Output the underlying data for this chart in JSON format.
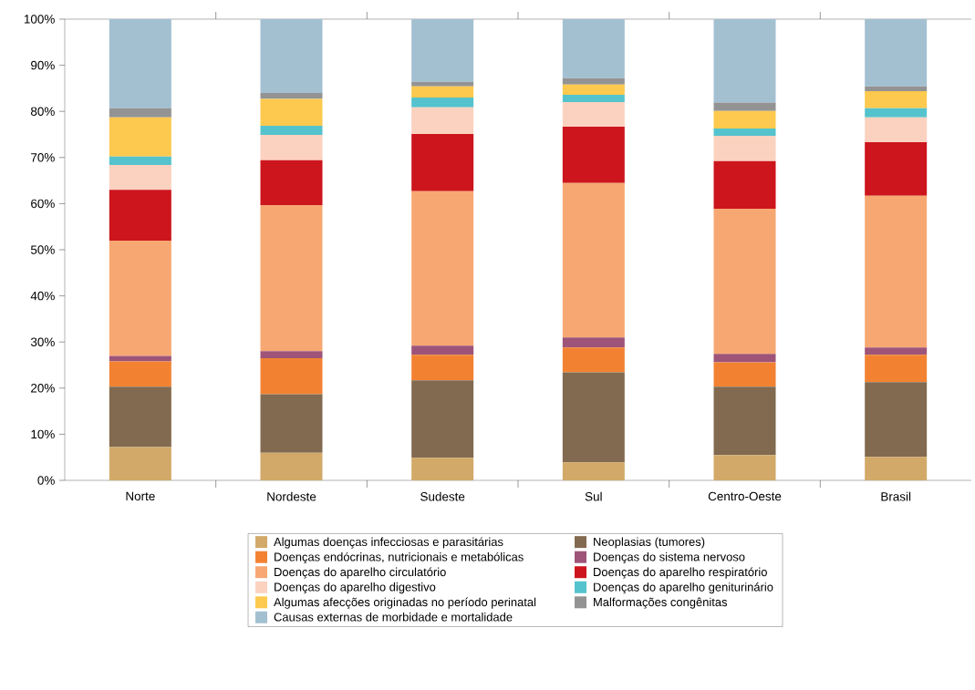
{
  "chart_data": {
    "type": "bar",
    "stacked": true,
    "categories": [
      "Norte",
      "Nordeste",
      "Sudeste",
      "Sul",
      "Centro-Oeste",
      "Brasil"
    ],
    "series": [
      {
        "name": "Algumas doenças infecciosas e parasitárias",
        "color": "#d2a968",
        "values": [
          7.2,
          6.0,
          4.9,
          3.9,
          5.5,
          5.1
        ]
      },
      {
        "name": "Neoplasias (tumores)",
        "color": "#826a50",
        "values": [
          13.1,
          12.7,
          16.8,
          19.5,
          14.8,
          16.2
        ]
      },
      {
        "name": "Doenças endócrinas, nutricionais e metabólicas",
        "color": "#f28232",
        "values": [
          5.5,
          7.8,
          5.5,
          5.4,
          5.3,
          5.9
        ]
      },
      {
        "name": "Doenças do sistema nervoso",
        "color": "#9e5478",
        "values": [
          1.2,
          1.5,
          2.0,
          2.2,
          1.8,
          1.6
        ]
      },
      {
        "name": "Doenças do aparelho circulatório",
        "color": "#f7a872",
        "values": [
          25.0,
          31.7,
          33.5,
          33.5,
          31.5,
          32.9
        ]
      },
      {
        "name": "Doenças do aparelho respiratório",
        "color": "#cc151d",
        "values": [
          11.0,
          9.7,
          12.4,
          12.2,
          10.3,
          11.6
        ]
      },
      {
        "name": "Doenças do aparelho digestivo",
        "color": "#fbd2bf",
        "values": [
          5.4,
          5.5,
          5.8,
          5.3,
          5.5,
          5.4
        ]
      },
      {
        "name": "Doenças do aparelho geniturinário",
        "color": "#55c3cd",
        "values": [
          1.8,
          2.0,
          2.1,
          1.6,
          1.6,
          2.0
        ]
      },
      {
        "name": "Algumas afecções originadas no período perinatal",
        "color": "#fdc94e",
        "values": [
          8.5,
          5.8,
          2.4,
          2.2,
          3.8,
          3.7
        ]
      },
      {
        "name": "Malformações congênitas",
        "color": "#939393",
        "values": [
          2.0,
          1.3,
          1.0,
          1.4,
          1.8,
          1.0
        ]
      },
      {
        "name": "Causas externas de morbidade e mortalidade",
        "color": "#a3c0d1",
        "values": [
          19.3,
          16.0,
          13.6,
          12.8,
          18.1,
          14.6
        ]
      }
    ],
    "ylim": [
      0,
      100
    ],
    "yticks": [
      {
        "value": 0,
        "label": "0%"
      },
      {
        "value": 10,
        "label": "10%"
      },
      {
        "value": 20,
        "label": "20%"
      },
      {
        "value": 30,
        "label": "30%"
      },
      {
        "value": 40,
        "label": "40%"
      },
      {
        "value": 50,
        "label": "50%"
      },
      {
        "value": 60,
        "label": "60%"
      },
      {
        "value": 70,
        "label": "70%"
      },
      {
        "value": 80,
        "label": "80%"
      },
      {
        "value": 90,
        "label": "90%"
      },
      {
        "value": 100,
        "label": "100%"
      }
    ],
    "legend": "bottom"
  }
}
